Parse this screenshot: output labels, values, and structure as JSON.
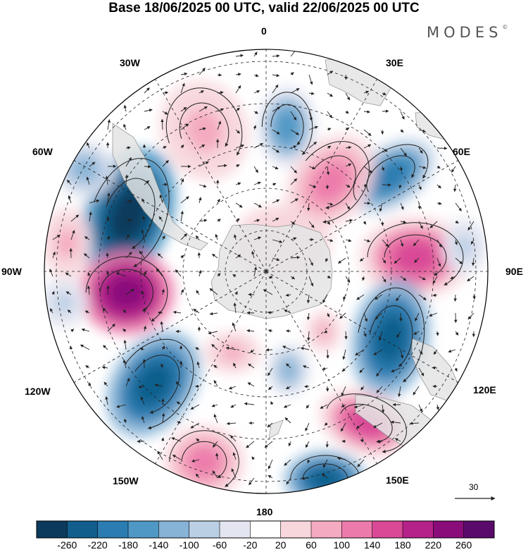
{
  "title": "Base 18/06/2025 00 UTC, valid 22/06/2025 00 UTC",
  "brand": "MODES",
  "brand_mark": "©",
  "longitude_labels": {
    "lon0": "0",
    "lon30e": "30E",
    "lon60e": "60E",
    "lon90e": "90E",
    "lon120e": "120E",
    "lon150e": "150E",
    "lon180": "180",
    "lon150w": "150W",
    "lon120w": "120W",
    "lon90w": "90W",
    "lon60w": "60W",
    "lon30w": "30W"
  },
  "colorbar": {
    "ticks": [
      "-260",
      "-220",
      "-180",
      "-140",
      "-100",
      "-60",
      "-20",
      "20",
      "60",
      "100",
      "140",
      "180",
      "220",
      "260"
    ],
    "colors": [
      "#0b3a5c",
      "#115e8c",
      "#2b7cb0",
      "#4f98c5",
      "#86b3d6",
      "#bacee4",
      "#e3e6f1",
      "#ffffff",
      "#f7d6dc",
      "#f4aac0",
      "#ec7bab",
      "#d94996",
      "#b5228a",
      "#8a0c7b",
      "#5a0a6a"
    ]
  },
  "reference_vector_label": "30",
  "colors": {
    "land": "#e4e4e4",
    "coast": "#8a8a8a",
    "grid": "#222222",
    "arrow": "#222222"
  }
}
